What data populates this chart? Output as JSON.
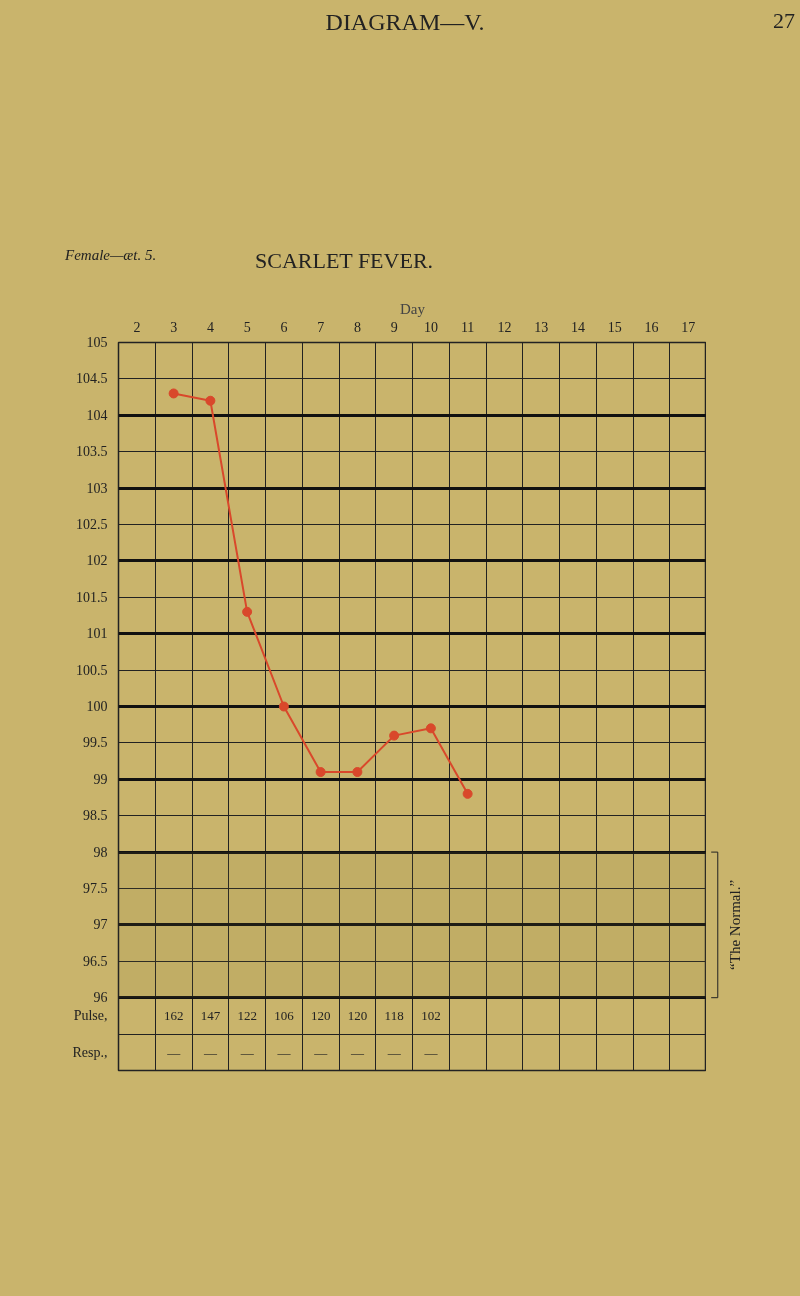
{
  "chart_data": {
    "type": "line",
    "title": "SCARLET FEVER.",
    "subtitle": "Female—æt. 5.",
    "xlabel": "Day",
    "annotations": [
      "DIAGRAM—V.",
      "27",
      "162",
      "147",
      "122",
      "106",
      "120",
      "120",
      "118",
      "102",
      "—",
      "—",
      "—",
      "—",
      "—",
      "—",
      "—",
      "—"
    ],
    "x": [
      3,
      4,
      5,
      6,
      7,
      8,
      9,
      10,
      11
    ],
    "series": [
      {
        "color": "#d9482b",
        "values": [
          104.3,
          104.2,
          101.3,
          100.0,
          99.1,
          99.1,
          99.6,
          99.7,
          98.8
        ]
      }
    ],
    "xlim": [
      1.5,
      17.5
    ],
    "xticks": [
      2,
      3,
      4,
      5,
      6,
      7,
      8,
      9,
      10,
      11,
      12,
      13,
      14,
      15,
      16,
      17
    ],
    "ylim": [
      95,
      105
    ],
    "yticks": [
      {
        "value": 95.25,
        "label": "Resp.,"
      },
      {
        "value": 95.75,
        "label": "Pulse,"
      },
      96,
      96.5,
      97,
      97.5,
      98,
      98.5,
      99,
      99.5,
      100,
      100.5,
      101,
      101.5,
      102,
      102.5,
      103,
      103.5,
      104,
      104.5,
      105
    ],
    "bands": [
      {
        "axis": "y",
        "from": 96,
        "to": 98,
        "label": "“The Normal.”"
      }
    ],
    "grid": true,
    "marker": "circle",
    "line_style": "solid"
  }
}
